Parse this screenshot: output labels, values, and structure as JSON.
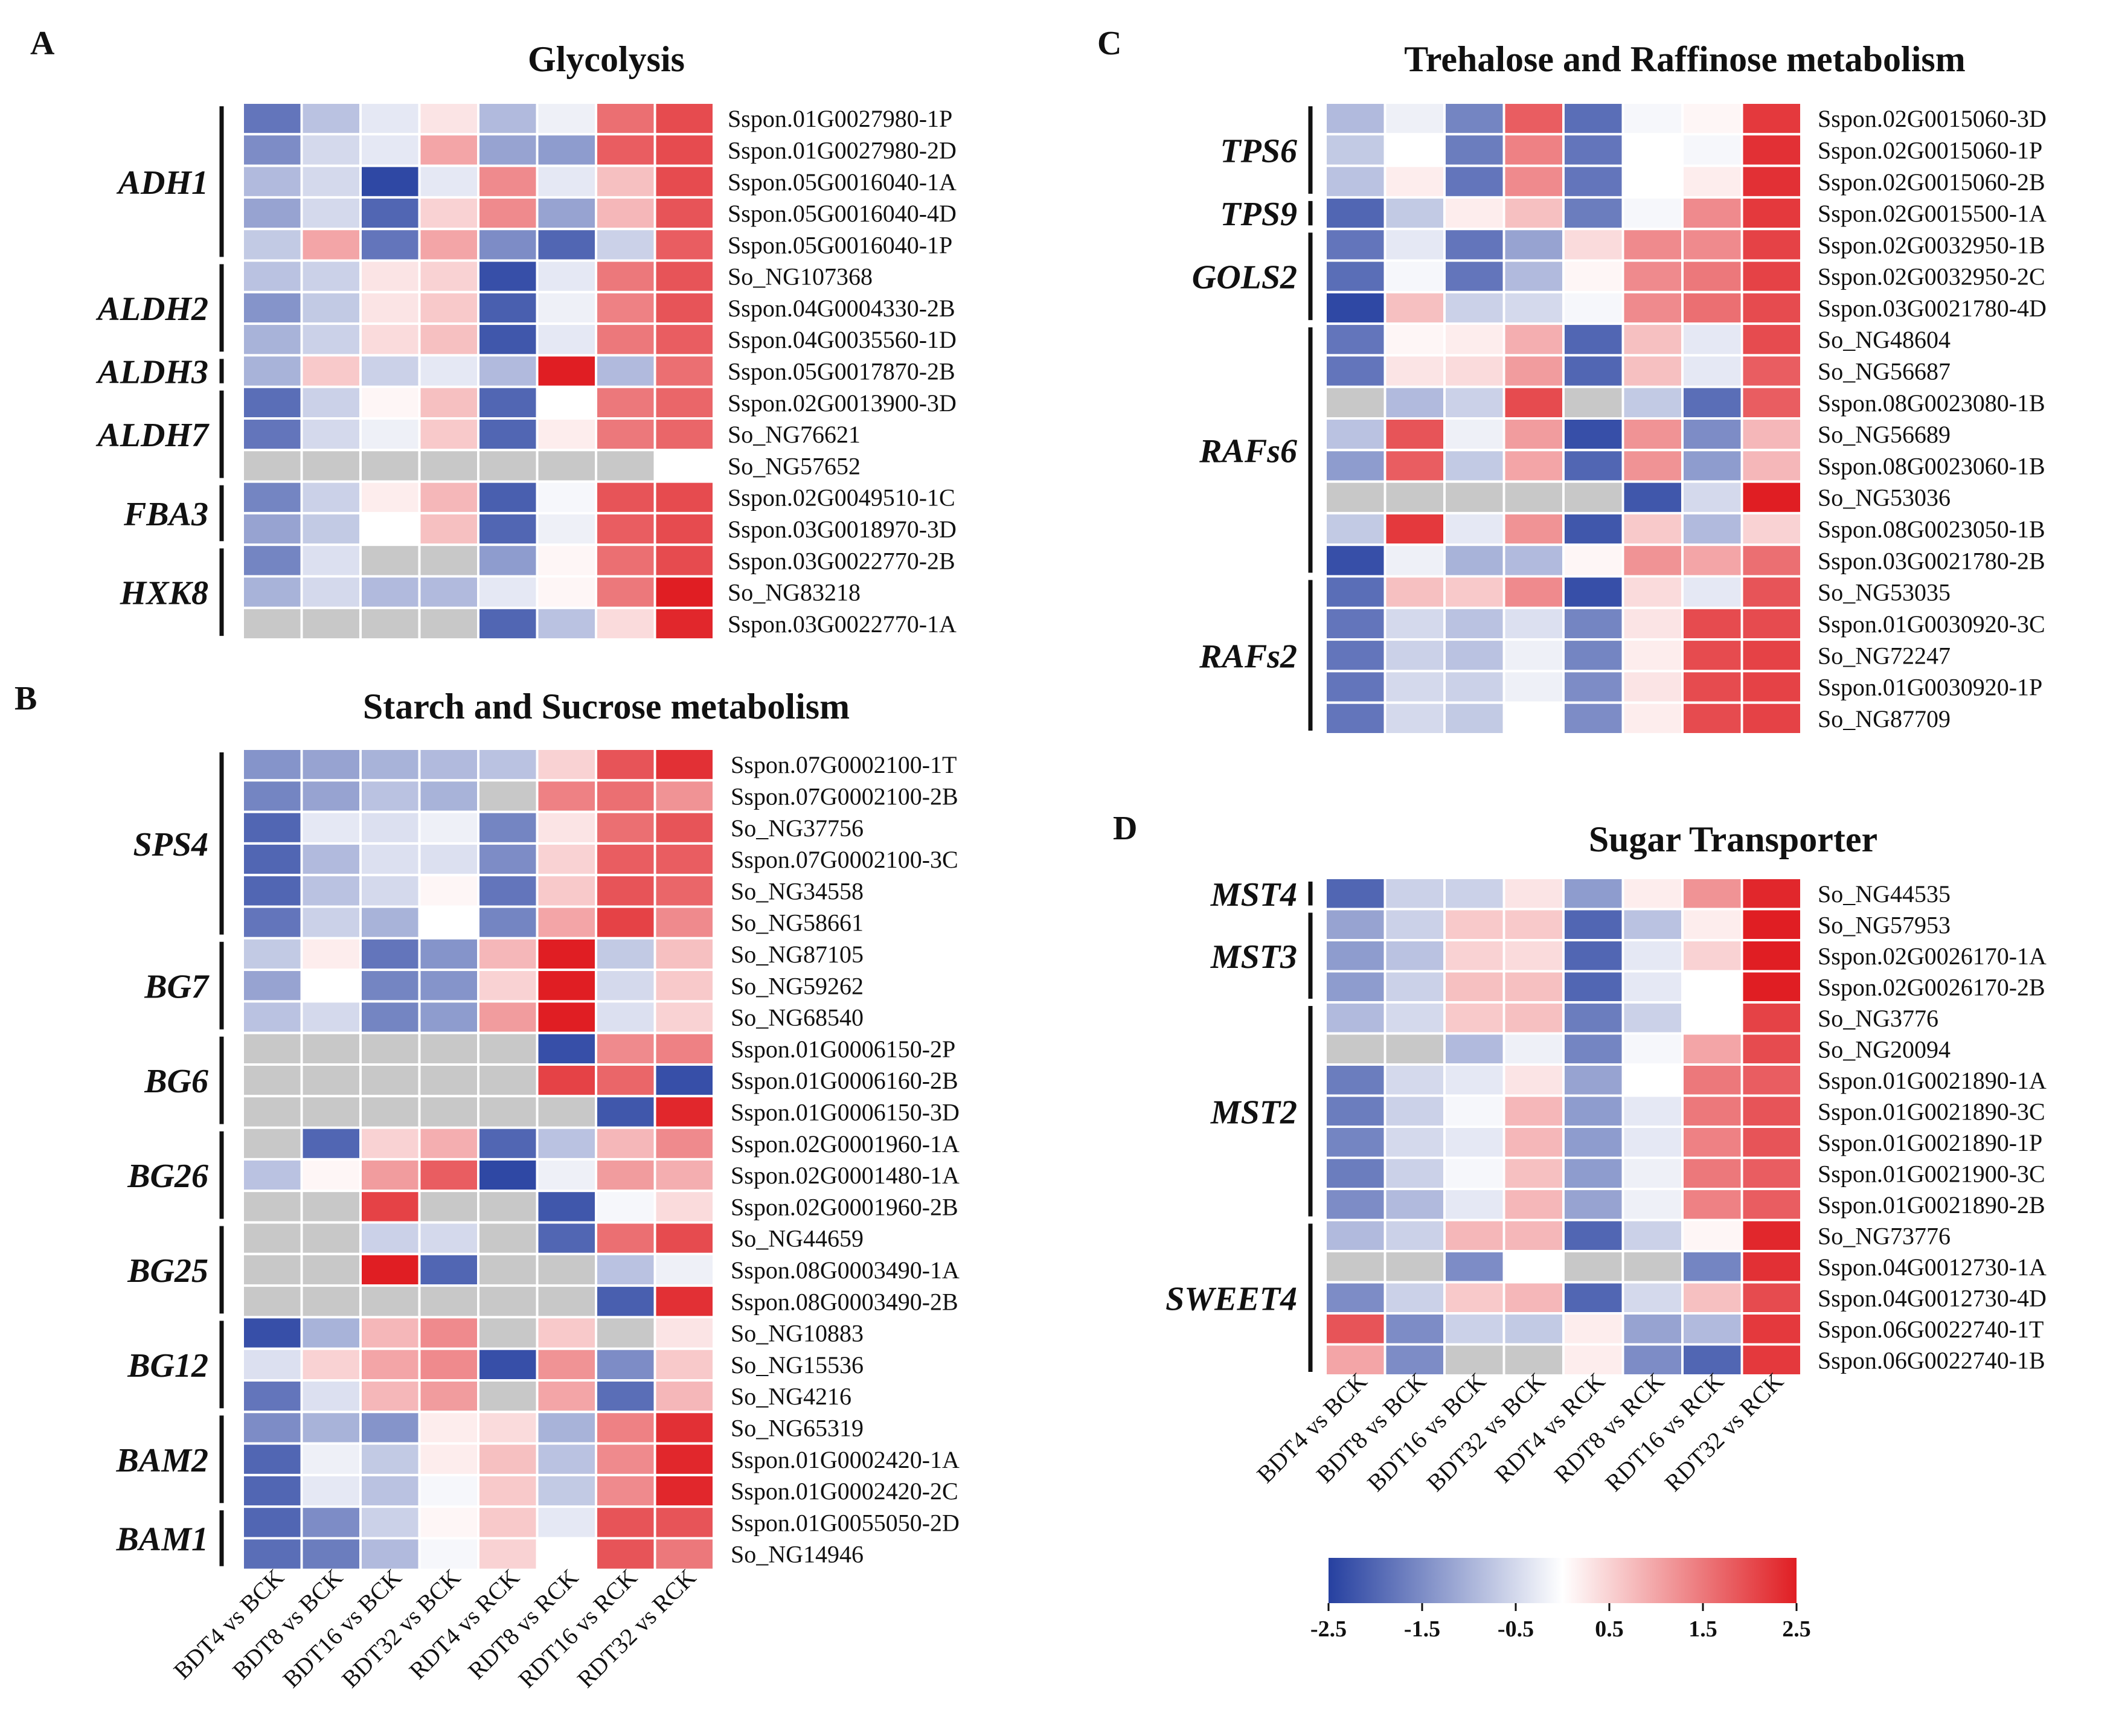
{
  "colors": {
    "low": "#2640a0",
    "mid": "#ffffff",
    "high": "#e01e23",
    "na": "#c8c8c8",
    "grid": "#ffffff"
  },
  "columns": [
    "BDT4 vs BCK",
    "BDT8 vs BCK",
    "BDT16 vs BCK",
    "BDT32 vs BCK",
    "RDT4 vs RCK",
    "RDT8 vs RCK",
    "RDT16 vs RCK",
    "RDT32 vs RCK"
  ],
  "legend": {
    "ticks": [
      "-2.5",
      "-1.5",
      "-0.5",
      "0.5",
      "1.5",
      "2.5"
    ],
    "min": -2.5,
    "max": 2.5
  },
  "chart_data": [
    {
      "type": "heatmap",
      "panel": "A",
      "title": "Glycolysis",
      "columns": [
        "BDT4 vs BCK",
        "BDT8 vs BCK",
        "BDT16 vs BCK",
        "BDT32 vs BCK",
        "RDT4 vs RCK",
        "RDT8 vs RCK",
        "RDT16 vs RCK",
        "RDT32 vs RCK"
      ],
      "range": [
        -2.5,
        2.5
      ],
      "rows": [
        "Sspon.01G0027980-1P",
        "Sspon.01G0027980-2D",
        "Sspon.05G0016040-1A",
        "Sspon.05G0016040-4D",
        "Sspon.05G0016040-1P",
        "So_NG107368",
        "Sspon.04G0004330-2B",
        "Sspon.04G0035560-1D",
        "Sspon.05G0017870-2B",
        "Sspon.02G0013900-3D",
        "So_NG76621",
        "So_NG57652",
        "Sspon.02G0049510-1C",
        "Sspon.03G0018970-3D",
        "Sspon.03G0022770-2B",
        "So_NG83218",
        "Sspon.03G0022770-1A"
      ],
      "groups": [
        {
          "label": "ADH1",
          "start": 0,
          "end": 4
        },
        {
          "label": "ALDH2",
          "start": 5,
          "end": 7
        },
        {
          "label": "ALDH3",
          "start": 8,
          "end": 8
        },
        {
          "label": "ALDH7",
          "start": 9,
          "end": 11
        },
        {
          "label": "FBA3",
          "start": 12,
          "end": 13
        },
        {
          "label": "HXK8",
          "start": 14,
          "end": 16
        }
      ],
      "values": [
        [
          -1.8,
          -0.8,
          -0.3,
          0.3,
          -0.9,
          -0.2,
          1.6,
          2.0
        ],
        [
          -1.5,
          -0.5,
          -0.3,
          1.0,
          -1.2,
          -1.3,
          1.8,
          2.0
        ],
        [
          -0.9,
          -0.5,
          -2.4,
          -0.3,
          1.3,
          -0.3,
          0.7,
          2.0
        ],
        [
          -1.2,
          -0.5,
          -2.0,
          0.5,
          1.3,
          -1.2,
          0.8,
          1.9
        ],
        [
          -0.7,
          1.0,
          -1.8,
          1.0,
          -1.5,
          -2.0,
          -0.6,
          1.8
        ],
        [
          -0.8,
          -0.6,
          0.3,
          0.5,
          -2.3,
          -0.3,
          1.5,
          1.9
        ],
        [
          -1.4,
          -0.7,
          0.3,
          0.6,
          -2.1,
          -0.2,
          1.4,
          1.9
        ],
        [
          -1.0,
          -0.6,
          0.4,
          0.7,
          -2.2,
          -0.3,
          1.5,
          1.8
        ],
        [
          -1.0,
          0.6,
          -0.6,
          -0.3,
          -0.9,
          2.5,
          -0.9,
          1.6
        ],
        [
          -1.9,
          -0.6,
          0.1,
          0.7,
          -2.0,
          0.0,
          1.5,
          1.7
        ],
        [
          -1.8,
          -0.5,
          -0.2,
          0.6,
          -2.0,
          0.2,
          1.5,
          1.7
        ],
        [
          null,
          null,
          null,
          null,
          null,
          null,
          null,
          0.0
        ],
        [
          -1.6,
          -0.6,
          0.2,
          0.8,
          -2.1,
          -0.1,
          1.9,
          2.0
        ],
        [
          -1.2,
          -0.7,
          0.0,
          0.7,
          -2.0,
          -0.2,
          1.8,
          2.0
        ],
        [
          -1.6,
          -0.4,
          null,
          null,
          -1.3,
          0.1,
          1.6,
          2.0
        ],
        [
          -1.0,
          -0.5,
          -0.9,
          -0.9,
          -0.3,
          0.1,
          1.5,
          2.5
        ],
        [
          null,
          null,
          null,
          null,
          -2.0,
          -0.8,
          0.4,
          2.4
        ]
      ]
    },
    {
      "type": "heatmap",
      "panel": "B",
      "title": "Starch and Sucrose metabolism",
      "columns": [
        "BDT4 vs BCK",
        "BDT8 vs BCK",
        "BDT16 vs BCK",
        "BDT32 vs BCK",
        "RDT4 vs RCK",
        "RDT8 vs RCK",
        "RDT16 vs RCK",
        "RDT32 vs RCK"
      ],
      "range": [
        -2.5,
        2.5
      ],
      "rows": [
        "Sspon.07G0002100-1T",
        "Sspon.07G0002100-2B",
        "So_NG37756",
        "Sspon.07G0002100-3C",
        "So_NG34558",
        "So_NG58661",
        "So_NG87105",
        "So_NG59262",
        "So_NG68540",
        "Sspon.01G0006150-2P",
        "Sspon.01G0006160-2B",
        "Sspon.01G0006150-3D",
        "Sspon.02G0001960-1A",
        "Sspon.02G0001480-1A",
        "Sspon.02G0001960-2B",
        "So_NG44659",
        "Sspon.08G0003490-1A",
        "Sspon.08G0003490-2B",
        "So_NG10883",
        "So_NG15536",
        "So_NG4216",
        "So_NG65319",
        "Sspon.01G0002420-1A",
        "Sspon.01G0002420-2C",
        "Sspon.01G0055050-2D",
        "So_NG14946"
      ],
      "groups": [
        {
          "label": "SPS4",
          "start": 0,
          "end": 5
        },
        {
          "label": "BG7",
          "start": 6,
          "end": 8
        },
        {
          "label": "BG6",
          "start": 9,
          "end": 11
        },
        {
          "label": "BG26",
          "start": 12,
          "end": 14
        },
        {
          "label": "BG25",
          "start": 15,
          "end": 17
        },
        {
          "label": "BG12",
          "start": 18,
          "end": 20
        },
        {
          "label": "BAM2",
          "start": 21,
          "end": 23
        },
        {
          "label": "BAM1",
          "start": 24,
          "end": 25
        }
      ],
      "values": [
        [
          -1.4,
          -1.2,
          -1.0,
          -0.9,
          -0.8,
          0.5,
          1.9,
          2.3
        ],
        [
          -1.6,
          -1.2,
          -0.8,
          -1.0,
          null,
          1.4,
          1.6,
          1.2
        ],
        [
          -2.0,
          -0.3,
          -0.4,
          -0.2,
          -1.6,
          0.3,
          1.6,
          1.9
        ],
        [
          -2.0,
          -0.9,
          -0.4,
          -0.4,
          -1.5,
          0.5,
          1.8,
          1.8
        ],
        [
          -2.0,
          -0.8,
          -0.5,
          0.1,
          -1.8,
          0.6,
          1.9,
          1.7
        ],
        [
          -1.8,
          -0.6,
          -1.0,
          0.0,
          -1.6,
          1.0,
          2.1,
          1.3
        ],
        [
          -0.7,
          0.2,
          -1.8,
          -1.4,
          0.8,
          2.5,
          -0.7,
          0.7
        ],
        [
          -1.2,
          0.0,
          -1.6,
          -1.4,
          0.5,
          2.5,
          -0.5,
          0.6
        ],
        [
          -0.8,
          -0.5,
          -1.6,
          -1.3,
          1.1,
          2.5,
          -0.4,
          0.5
        ],
        [
          null,
          null,
          null,
          null,
          null,
          -2.3,
          1.3,
          1.4
        ],
        [
          null,
          null,
          null,
          null,
          null,
          2.1,
          1.7,
          -2.3
        ],
        [
          null,
          null,
          null,
          null,
          null,
          null,
          -2.2,
          2.4
        ],
        [
          null,
          -2.0,
          0.5,
          0.9,
          -2.0,
          -0.8,
          0.8,
          1.3
        ],
        [
          -0.8,
          0.1,
          1.1,
          1.8,
          -2.4,
          -0.2,
          1.1,
          0.9
        ],
        [
          null,
          null,
          2.1,
          null,
          null,
          -2.2,
          -0.1,
          0.4
        ],
        [
          null,
          null,
          -0.6,
          -0.5,
          null,
          -2.0,
          1.6,
          2.0
        ],
        [
          null,
          null,
          2.5,
          -2.0,
          null,
          null,
          -0.8,
          -0.2
        ],
        [
          null,
          null,
          null,
          null,
          null,
          null,
          -2.1,
          2.3
        ],
        [
          -2.3,
          -1.0,
          0.8,
          1.3,
          null,
          0.6,
          null,
          0.3
        ],
        [
          -0.4,
          0.5,
          1.0,
          1.3,
          -2.3,
          1.2,
          -1.5,
          0.6
        ],
        [
          -1.8,
          -0.4,
          0.8,
          1.1,
          null,
          1.0,
          -1.9,
          0.8
        ],
        [
          -1.5,
          -1.0,
          -1.4,
          0.2,
          0.4,
          -1.0,
          1.4,
          2.3
        ],
        [
          -2.0,
          -0.2,
          -0.7,
          0.2,
          0.7,
          -0.8,
          1.3,
          2.4
        ],
        [
          -2.0,
          -0.3,
          -0.8,
          -0.1,
          0.6,
          -0.7,
          1.3,
          2.4
        ],
        [
          -2.0,
          -1.5,
          -0.6,
          0.1,
          0.6,
          -0.3,
          1.9,
          1.9
        ],
        [
          -1.9,
          -1.7,
          -0.9,
          -0.1,
          0.5,
          0.0,
          1.9,
          1.5
        ]
      ]
    },
    {
      "type": "heatmap",
      "panel": "C",
      "title": "Trehalose and Raffinose metabolism",
      "columns": [
        "BDT4 vs BCK",
        "BDT8 vs BCK",
        "BDT16 vs BCK",
        "BDT32 vs BCK",
        "RDT4 vs RCK",
        "RDT8 vs RCK",
        "RDT16 vs RCK",
        "RDT32 vs RCK"
      ],
      "range": [
        -2.5,
        2.5
      ],
      "rows": [
        "Sspon.02G0015060-3D",
        "Sspon.02G0015060-1P",
        "Sspon.02G0015060-2B",
        "Sspon.02G0015500-1A",
        "Sspon.02G0032950-1B",
        "Sspon.02G0032950-2C",
        "Sspon.03G0021780-4D",
        "So_NG48604",
        "So_NG56687",
        "Sspon.08G0023080-1B",
        "So_NG56689",
        "Sspon.08G0023060-1B",
        "So_NG53036",
        "Sspon.08G0023050-1B",
        "Sspon.03G0021780-2B",
        "So_NG53035",
        "Sspon.01G0030920-3C",
        "So_NG72247",
        "Sspon.01G0030920-1P",
        "So_NG87709"
      ],
      "groups": [
        {
          "label": "TPS6",
          "start": 0,
          "end": 2
        },
        {
          "label": "TPS9",
          "start": 3,
          "end": 3
        },
        {
          "label": "GOLS2",
          "start": 4,
          "end": 6
        },
        {
          "label": "RAFs6",
          "start": 7,
          "end": 14
        },
        {
          "label": "RAFs2",
          "start": 15,
          "end": 19
        }
      ],
      "values": [
        [
          -0.9,
          -0.2,
          -1.6,
          1.8,
          -1.9,
          -0.1,
          0.1,
          2.2
        ],
        [
          -0.7,
          0.0,
          -1.7,
          1.4,
          -1.8,
          0.0,
          -0.1,
          2.3
        ],
        [
          -0.8,
          0.2,
          -1.8,
          1.3,
          -1.8,
          0.0,
          0.2,
          2.3
        ],
        [
          -2.0,
          -0.7,
          0.2,
          0.7,
          -1.7,
          -0.1,
          1.3,
          2.2
        ],
        [
          -1.8,
          -0.3,
          -1.8,
          -1.2,
          0.4,
          1.3,
          1.3,
          2.1
        ],
        [
          -1.9,
          -0.1,
          -1.8,
          -0.9,
          0.1,
          1.3,
          1.5,
          2.1
        ],
        [
          -2.4,
          0.7,
          -0.6,
          -0.5,
          -0.1,
          1.3,
          1.6,
          2.0
        ],
        [
          -1.8,
          0.1,
          0.2,
          0.9,
          -2.0,
          0.7,
          -0.3,
          2.0
        ],
        [
          -1.8,
          0.3,
          0.4,
          1.1,
          -2.0,
          0.7,
          -0.3,
          1.8
        ],
        [
          null,
          -0.9,
          -0.6,
          2.0,
          null,
          -0.7,
          -1.9,
          1.8
        ],
        [
          -0.8,
          1.9,
          -0.2,
          1.1,
          -2.3,
          1.2,
          -1.5,
          0.8
        ],
        [
          -1.3,
          1.8,
          -0.7,
          1.0,
          -2.0,
          1.2,
          -1.3,
          0.8
        ],
        [
          null,
          null,
          null,
          null,
          null,
          -2.2,
          -0.5,
          2.5
        ],
        [
          -0.7,
          2.2,
          -0.3,
          1.2,
          -2.2,
          0.6,
          -0.9,
          0.5
        ],
        [
          -2.3,
          -0.2,
          -1.0,
          -0.9,
          0.1,
          1.2,
          1.0,
          1.6
        ],
        [
          -1.9,
          0.7,
          0.6,
          1.3,
          -2.3,
          0.4,
          -0.3,
          1.9
        ],
        [
          -1.8,
          -0.5,
          -0.8,
          -0.4,
          -1.6,
          0.3,
          2.0,
          2.0
        ],
        [
          -1.8,
          -0.6,
          -0.8,
          -0.2,
          -1.6,
          0.2,
          2.0,
          2.1
        ],
        [
          -1.8,
          -0.5,
          -0.6,
          -0.2,
          -1.5,
          0.3,
          2.0,
          2.1
        ],
        [
          -1.8,
          -0.5,
          -0.7,
          0.0,
          -1.5,
          0.2,
          2.0,
          2.1
        ]
      ]
    },
    {
      "type": "heatmap",
      "panel": "D",
      "title": "Sugar Transporter",
      "columns": [
        "BDT4 vs BCK",
        "BDT8 vs BCK",
        "BDT16 vs BCK",
        "BDT32 vs BCK",
        "RDT4 vs RCK",
        "RDT8 vs RCK",
        "RDT16 vs RCK",
        "RDT32 vs RCK"
      ],
      "range": [
        -2.5,
        2.5
      ],
      "rows": [
        "So_NG44535",
        "So_NG57953",
        "Sspon.02G0026170-1A",
        "Sspon.02G0026170-2B",
        "So_NG3776",
        "So_NG20094",
        "Sspon.01G0021890-1A",
        "Sspon.01G0021890-3C",
        "Sspon.01G0021890-1P",
        "Sspon.01G0021900-3C",
        "Sspon.01G0021890-2B",
        "So_NG73776",
        "Sspon.04G0012730-1A",
        "Sspon.04G0012730-4D",
        "Sspon.06G0022740-1T",
        "Sspon.06G0022740-1B"
      ],
      "groups": [
        {
          "label": "MST4",
          "start": 0,
          "end": 0
        },
        {
          "label": "MST3",
          "start": 1,
          "end": 3
        },
        {
          "label": "MST2",
          "start": 4,
          "end": 10
        },
        {
          "label": "SWEET4",
          "start": 11,
          "end": 15
        }
      ],
      "values": [
        [
          -2.0,
          -0.6,
          -0.6,
          0.3,
          -1.3,
          0.2,
          1.2,
          2.4
        ],
        [
          -1.2,
          -0.6,
          0.6,
          0.6,
          -2.0,
          -0.8,
          0.2,
          2.5
        ],
        [
          -1.3,
          -0.8,
          0.5,
          0.4,
          -2.0,
          -0.3,
          0.5,
          2.5
        ],
        [
          -1.3,
          -0.6,
          0.7,
          0.7,
          -2.0,
          -0.3,
          0.0,
          2.5
        ],
        [
          -0.9,
          -0.5,
          0.6,
          0.7,
          -1.7,
          -0.6,
          0.0,
          2.1
        ],
        [
          null,
          null,
          -0.9,
          -0.2,
          -1.6,
          -0.1,
          1.0,
          2.0
        ],
        [
          -1.7,
          -0.5,
          -0.3,
          0.3,
          -1.2,
          0.0,
          1.5,
          1.8
        ],
        [
          -1.7,
          -0.6,
          -0.1,
          0.8,
          -1.3,
          -0.3,
          1.5,
          1.9
        ],
        [
          -1.6,
          -0.5,
          -0.3,
          0.8,
          -1.3,
          -0.3,
          1.4,
          1.9
        ],
        [
          -1.7,
          -0.6,
          -0.1,
          0.7,
          -1.3,
          -0.2,
          1.5,
          1.8
        ],
        [
          -1.5,
          -0.9,
          -0.3,
          0.8,
          -1.2,
          -0.2,
          1.4,
          1.8
        ],
        [
          -0.9,
          -0.6,
          0.8,
          0.8,
          -2.0,
          -0.6,
          0.1,
          2.4
        ],
        [
          null,
          null,
          -1.5,
          0.0,
          null,
          null,
          -1.6,
          2.3
        ],
        [
          -1.5,
          -0.6,
          0.6,
          0.8,
          -2.0,
          -0.5,
          0.7,
          2.0
        ],
        [
          1.9,
          -1.5,
          -0.6,
          -0.7,
          0.2,
          -1.2,
          -0.9,
          2.2
        ],
        [
          1.0,
          -1.5,
          null,
          null,
          0.2,
          -1.5,
          -2.0,
          2.2
        ]
      ]
    }
  ]
}
